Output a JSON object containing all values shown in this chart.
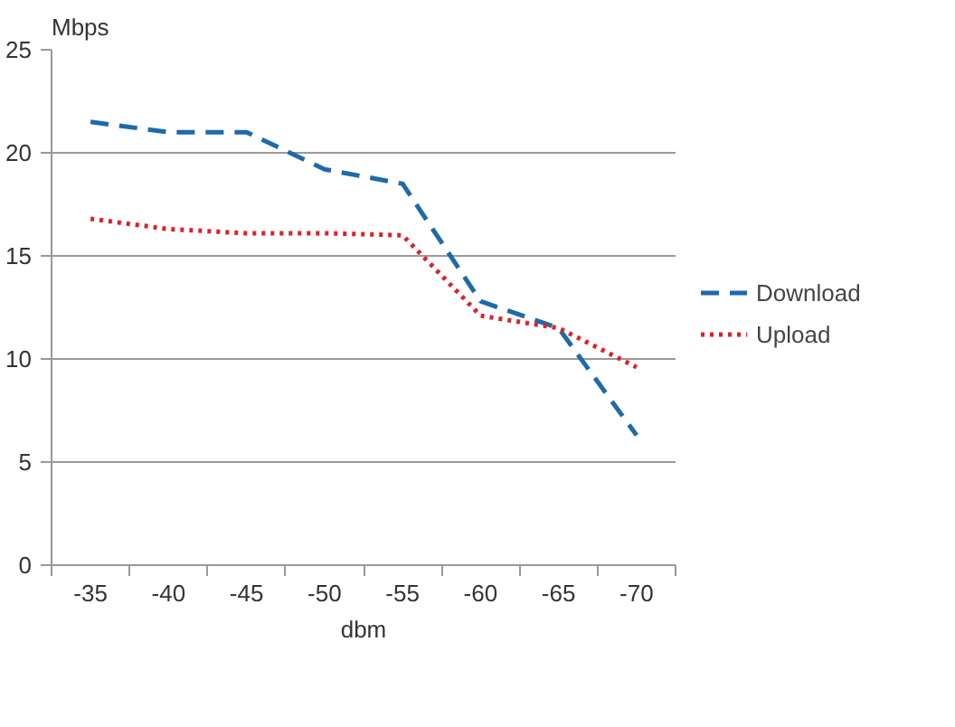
{
  "chart_data": {
    "type": "line",
    "xlabel": "dbm",
    "ylabel": "Mbps",
    "categories": [
      "-35",
      "-40",
      "-45",
      "-50",
      "-55",
      "-60",
      "-65",
      "-70"
    ],
    "ylim": [
      0,
      25
    ],
    "yticks": [
      0,
      5,
      10,
      15,
      20,
      25
    ],
    "grid": "y",
    "legend": "right",
    "marker": "none",
    "series": [
      {
        "name": "Download",
        "color": "#1f6aa8",
        "line_style": "dashed",
        "values": [
          21.5,
          21,
          21,
          19.2,
          18.5,
          12.8,
          11.5,
          6.3
        ]
      },
      {
        "name": "Upload",
        "color": "#e0202a",
        "line_style": "dotted",
        "values": [
          16.8,
          16.3,
          16.1,
          16.1,
          16,
          12.1,
          11.5,
          9.6
        ]
      }
    ]
  }
}
